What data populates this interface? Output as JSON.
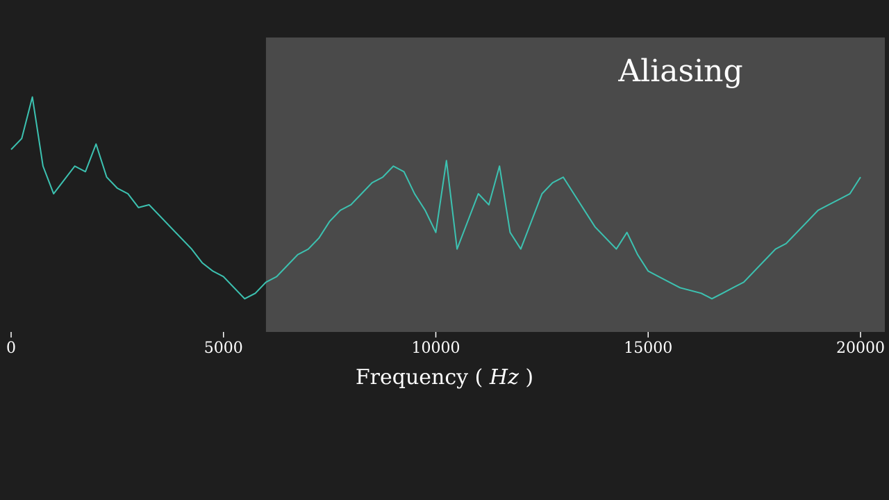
{
  "chart_data": {
    "type": "line",
    "xlabel_text": "Frequency ",
    "xlabel_unit": "Hz",
    "xlim": [
      0,
      20000
    ],
    "ylim": [
      0,
      1
    ],
    "x_ticks": [
      0,
      5000,
      10000,
      15000,
      20000
    ],
    "grid": false,
    "legend": "none",
    "colors": {
      "background": "#1e1e1e",
      "line": "#3cc2b1",
      "region": "#4a4a4a",
      "text": "#ffffff"
    },
    "region": {
      "label": "Aliasing",
      "x_start": 6000,
      "x_end": 20600
    },
    "series": [
      {
        "x": [
          0,
          250,
          500,
          750,
          1000,
          1250,
          1500,
          1750,
          2000,
          2250,
          2500,
          2750,
          3000,
          3250,
          3500,
          3750,
          4000,
          4250,
          4500,
          4750,
          5000,
          5250,
          5500,
          5750,
          6000,
          6250,
          6500,
          6750,
          7000,
          7250,
          7500,
          7750,
          8000,
          8250,
          8500,
          8750,
          9000,
          9250,
          9500,
          9750,
          10000,
          10250,
          10500,
          10750,
          11000,
          11250,
          11500,
          11750,
          12000,
          12250,
          12500,
          12750,
          13000,
          13250,
          13500,
          13750,
          14000,
          14250,
          14500,
          14750,
          15000,
          15250,
          15500,
          15750,
          16000,
          16250,
          16500,
          16750,
          17000,
          17250,
          17500,
          17750,
          18000,
          18250,
          18500,
          18750,
          19000,
          19250,
          19500,
          19750,
          20000
        ],
        "y": [
          0.66,
          0.7,
          0.85,
          0.6,
          0.5,
          0.55,
          0.6,
          0.58,
          0.68,
          0.56,
          0.52,
          0.5,
          0.45,
          0.46,
          0.42,
          0.38,
          0.34,
          0.3,
          0.25,
          0.22,
          0.2,
          0.16,
          0.12,
          0.14,
          0.18,
          0.2,
          0.24,
          0.28,
          0.3,
          0.34,
          0.4,
          0.44,
          0.46,
          0.5,
          0.54,
          0.56,
          0.6,
          0.58,
          0.5,
          0.44,
          0.36,
          0.62,
          0.3,
          0.4,
          0.5,
          0.46,
          0.6,
          0.36,
          0.3,
          0.4,
          0.5,
          0.54,
          0.56,
          0.5,
          0.44,
          0.38,
          0.34,
          0.3,
          0.36,
          0.28,
          0.22,
          0.2,
          0.18,
          0.16,
          0.15,
          0.14,
          0.12,
          0.14,
          0.16,
          0.18,
          0.22,
          0.26,
          0.3,
          0.32,
          0.36,
          0.4,
          0.44,
          0.46,
          0.48,
          0.5,
          0.56
        ]
      }
    ]
  }
}
